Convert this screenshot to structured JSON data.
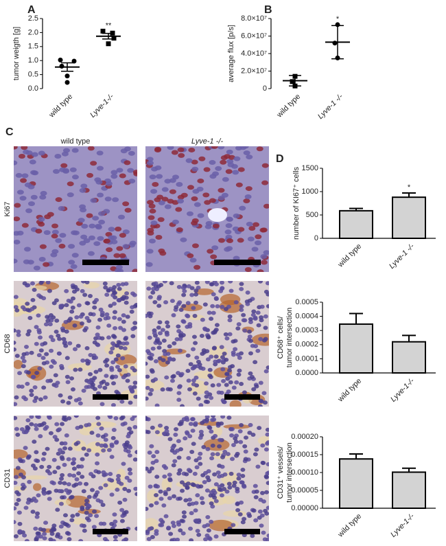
{
  "figure": {
    "panel_labels": [
      "A",
      "B",
      "C",
      "D"
    ],
    "image_columns": [
      "wild type",
      "Lyve-1 -/-"
    ],
    "image_rows": [
      "Ki67",
      "CD68",
      "CD31"
    ]
  },
  "chart_data": [
    {
      "type": "dotplot",
      "ylabel": "tumor weigth [g]",
      "categories": [
        "wild type",
        "Lyve-1-/-"
      ],
      "markers": [
        "circle",
        "square"
      ],
      "points": [
        [
          1.02,
          0.98,
          0.8,
          0.45,
          0.22
        ],
        [
          2.05,
          1.98,
          1.8,
          1.6
        ]
      ],
      "means": [
        0.77,
        1.87
      ],
      "errors": [
        0.15,
        0.1
      ],
      "annotation": "**",
      "ylim": [
        0,
        2.5
      ],
      "yticks": [
        {
          "value": 0,
          "label": "0.0"
        },
        0.5,
        {
          "value": 1,
          "label": "1.0"
        },
        1.5,
        {
          "value": 2,
          "label": "2.0"
        },
        2.5
      ]
    },
    {
      "type": "dotplot",
      "ylabel": "average flux [p/s]",
      "categories": [
        "wild type",
        "Lyve-1 -/-"
      ],
      "markers": [
        "square",
        "circle"
      ],
      "points": [
        [
          14000000,
          8000000,
          3000000
        ],
        [
          73000000,
          52000000,
          35000000
        ]
      ],
      "means": [
        9000000,
        53000000
      ],
      "errors": [
        6000000,
        19000000
      ],
      "annotation": "*",
      "ylim": [
        0,
        80000000
      ],
      "yticks": [
        0,
        {
          "value": 20000000,
          "label": "2.0×10⁷"
        },
        {
          "value": 40000000,
          "label": "4.0×10⁷"
        },
        {
          "value": 60000000,
          "label": "6.0×10⁷"
        },
        {
          "value": 80000000,
          "label": "8.0×10⁷"
        }
      ]
    },
    {
      "type": "bar",
      "ylabel": [
        "number of KI67⁺ cells"
      ],
      "categories": [
        "wild type",
        "Lyve-1 -/-"
      ],
      "values": [
        590,
        880
      ],
      "errors": [
        50,
        90
      ],
      "annotation": "*",
      "color": "#d3d3d3",
      "ylim": [
        0,
        1500
      ],
      "yticks": [
        0,
        500,
        1000,
        1500
      ]
    },
    {
      "type": "bar",
      "ylabel": [
        "CD68⁺ cells/",
        "tumor intersection"
      ],
      "categories": [
        "wild type",
        "Lyve-1-/-"
      ],
      "values": [
        0.000345,
        0.00022
      ],
      "errors": [
        7.5e-05,
        4.5e-05
      ],
      "color": "#d3d3d3",
      "ylim": [
        0,
        0.0005
      ],
      "yticks": [
        {
          "value": 0,
          "label": "0.0000"
        },
        0.0001,
        0.0002,
        0.0003,
        0.0004,
        0.0005
      ]
    },
    {
      "type": "bar",
      "ylabel": [
        "CD31⁺ vessels/",
        "tumor intersection"
      ],
      "categories": [
        "wild type",
        "Lyve-1-/-"
      ],
      "values": [
        0.000138,
        0.000101
      ],
      "errors": [
        1.4e-05,
        1.1e-05
      ],
      "color": "#d3d3d3",
      "ylim": [
        0,
        0.0002
      ],
      "yticks": [
        {
          "value": 0,
          "label": "0.00000"
        },
        5e-05,
        {
          "value": 0.0001,
          "label": "0.00010"
        },
        0.00015,
        {
          "value": 0.0002,
          "label": "0.00020"
        }
      ]
    }
  ]
}
